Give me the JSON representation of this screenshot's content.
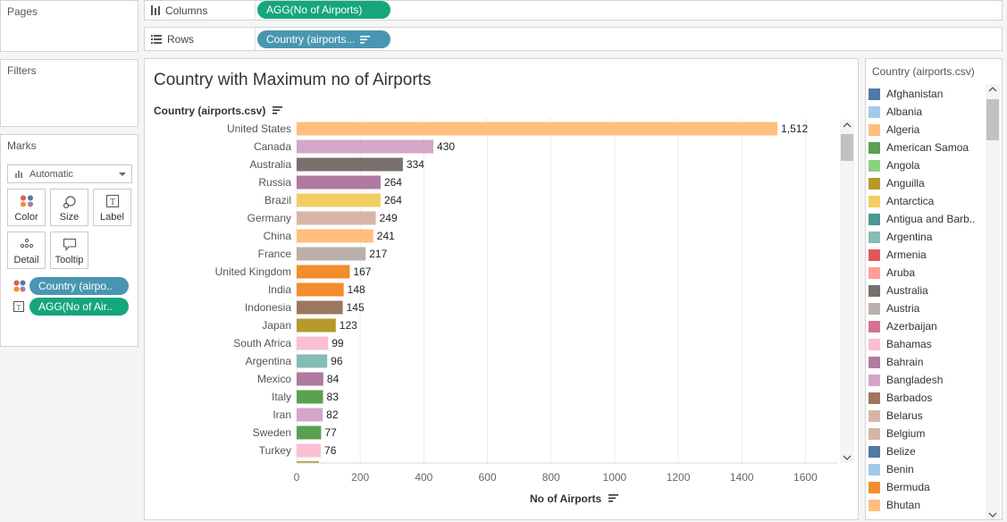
{
  "pages": {
    "title": "Pages"
  },
  "filters": {
    "title": "Filters"
  },
  "columns_shelf": {
    "label": "Columns",
    "pill": "AGG(No of Airports)"
  },
  "rows_shelf": {
    "label": "Rows",
    "pill": "Country (airports..."
  },
  "marks": {
    "title": "Marks",
    "type": "Automatic",
    "buttons": {
      "color": "Color",
      "size": "Size",
      "label": "Label",
      "detail": "Detail",
      "tooltip": "Tooltip"
    },
    "pills": [
      {
        "text": "Country (airpo..",
        "icon": "color-dots-icon",
        "color": "#4996b2"
      },
      {
        "text": "AGG(No of Air..",
        "icon": "text-label-icon",
        "color": "#16a67c"
      }
    ]
  },
  "chart": {
    "title": "Country with Maximum no of Airports",
    "row_header": "Country (airports.csv)",
    "x_title": "No of Airports"
  },
  "chart_data": {
    "type": "bar",
    "orientation": "horizontal",
    "xlabel": "No of Airports",
    "ylabel": "Country (airports.csv)",
    "xlim": [
      0,
      1700
    ],
    "x_ticks": [
      0,
      200,
      400,
      600,
      800,
      1000,
      1200,
      1400,
      1600
    ],
    "grid": true,
    "categories": [
      "United States",
      "Canada",
      "Australia",
      "Russia",
      "Brazil",
      "Germany",
      "China",
      "France",
      "United Kingdom",
      "India",
      "Indonesia",
      "Japan",
      "South Africa",
      "Argentina",
      "Mexico",
      "Italy",
      "Iran",
      "Sweden",
      "Turkey"
    ],
    "values": [
      1512,
      430,
      334,
      264,
      264,
      249,
      241,
      217,
      167,
      148,
      145,
      123,
      99,
      96,
      84,
      83,
      82,
      77,
      76
    ],
    "value_labels": [
      "1,512",
      "430",
      "334",
      "264",
      "264",
      "249",
      "241",
      "217",
      "167",
      "148",
      "145",
      "123",
      "99",
      "96",
      "84",
      "83",
      "82",
      "77",
      "76"
    ],
    "colors": [
      "#ffbe7d",
      "#d4a6c8",
      "#79706e",
      "#b07aa1",
      "#f1ce63",
      "#d7b5a6",
      "#ffbe7d",
      "#bab0ac",
      "#f28e2b",
      "#f28e2b",
      "#9d7660",
      "#b6992d",
      "#fabfd2",
      "#86bcb6",
      "#b07aa1",
      "#59a14f",
      "#d4a6c8",
      "#59a14f",
      "#fabfd2"
    ]
  },
  "legend": {
    "title": "Country (airports.csv)",
    "items": [
      {
        "name": "Afghanistan",
        "color": "#4e79a7"
      },
      {
        "name": "Albania",
        "color": "#a0cbe8"
      },
      {
        "name": "Algeria",
        "color": "#ffbe7d"
      },
      {
        "name": "American Samoa",
        "color": "#59a14f"
      },
      {
        "name": "Angola",
        "color": "#8cd17d"
      },
      {
        "name": "Anguilla",
        "color": "#b6992d"
      },
      {
        "name": "Antarctica",
        "color": "#f1ce63"
      },
      {
        "name": "Antigua and Barb..",
        "color": "#499894"
      },
      {
        "name": "Argentina",
        "color": "#86bcb6"
      },
      {
        "name": "Armenia",
        "color": "#e15759"
      },
      {
        "name": "Aruba",
        "color": "#ff9d9a"
      },
      {
        "name": "Australia",
        "color": "#79706e"
      },
      {
        "name": "Austria",
        "color": "#bab0ac"
      },
      {
        "name": "Azerbaijan",
        "color": "#d37295"
      },
      {
        "name": "Bahamas",
        "color": "#fabfd2"
      },
      {
        "name": "Bahrain",
        "color": "#b07aa1"
      },
      {
        "name": "Bangladesh",
        "color": "#d4a6c8"
      },
      {
        "name": "Barbados",
        "color": "#9d7660"
      },
      {
        "name": "Belarus",
        "color": "#d7b5a6"
      },
      {
        "name": "Belgium",
        "color": "#d7b5a6"
      },
      {
        "name": "Belize",
        "color": "#4e79a7"
      },
      {
        "name": "Benin",
        "color": "#a0cbe8"
      },
      {
        "name": "Bermuda",
        "color": "#f28e2b"
      },
      {
        "name": "Bhutan",
        "color": "#ffbe7d"
      }
    ]
  }
}
